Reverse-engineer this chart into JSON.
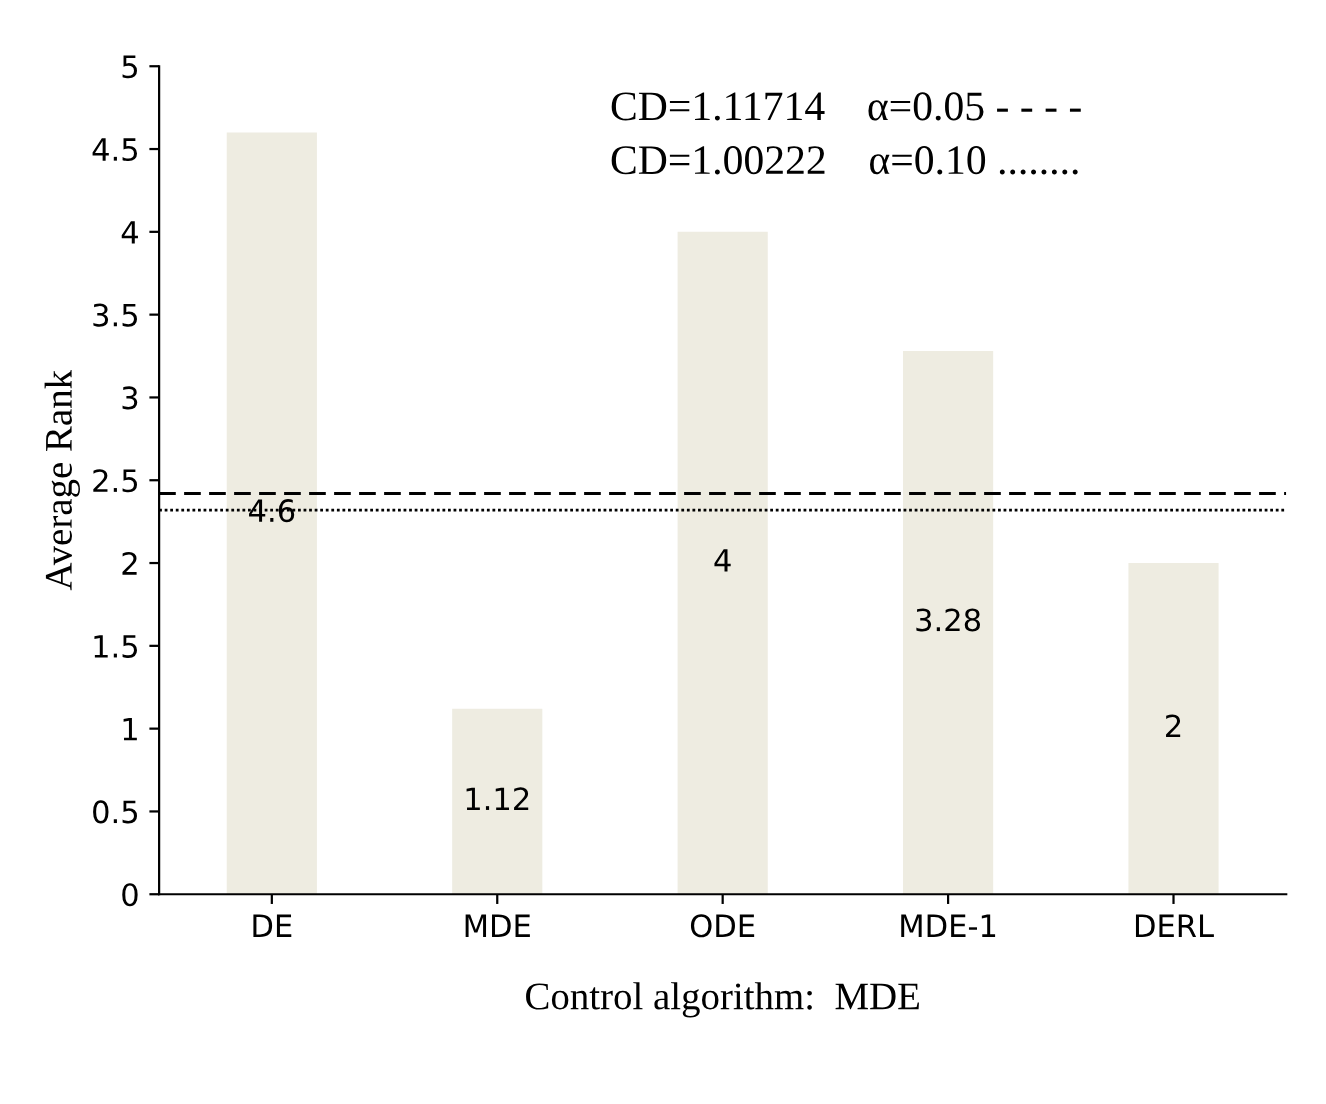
{
  "chart_data": {
    "type": "bar",
    "xlabel": "Control algorithm:  MDE",
    "ylabel": "Average Rank",
    "categories": [
      "DE",
      "MDE",
      "ODE",
      "MDE-1",
      "DERL"
    ],
    "values": [
      4.6,
      1.12,
      4,
      3.28,
      2
    ],
    "color": "#eeece1",
    "data_labels": true,
    "ylim": [
      0,
      5
    ],
    "yticks": [
      0,
      0.5,
      1,
      1.5,
      2,
      2.5,
      3,
      3.5,
      4,
      4.5,
      5
    ],
    "grid": false,
    "ref_lines": [
      {
        "axis": "y",
        "value": 2.42,
        "line_style": "dashed",
        "color": "#000000"
      },
      {
        "axis": "y",
        "value": 2.32,
        "line_style": "dotted",
        "color": "#000000"
      }
    ],
    "annotations": [
      "CD=1.11714    α=0.05 - - - -",
      "CD=1.00222    α=0.10 ........"
    ]
  }
}
